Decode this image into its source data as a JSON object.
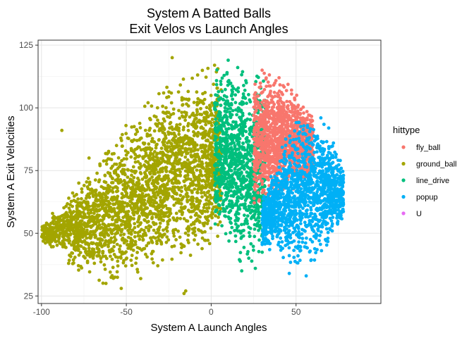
{
  "chart_data": {
    "type": "scatter",
    "title": "System A Batted Balls",
    "subtitle": "Exit Velos vs Launch Angles",
    "xlabel": "System A Launch Angles",
    "ylabel": "System A Exit Velocities",
    "xlim": [
      -102,
      100
    ],
    "ylim": [
      22,
      127
    ],
    "x_ticks": [
      -100,
      -50,
      0,
      50
    ],
    "y_ticks": [
      25,
      50,
      75,
      100,
      125
    ],
    "grid": true,
    "legend": {
      "title": "hittype",
      "placement": "right",
      "entries": [
        {
          "name": "fly_ball",
          "color": "#F8766D"
        },
        {
          "name": "ground_ball",
          "color": "#A3A500"
        },
        {
          "name": "line_drive",
          "color": "#00BF7D"
        },
        {
          "name": "popup",
          "color": "#00B0F6"
        },
        {
          "name": "U",
          "color": "#E76BF3"
        }
      ]
    },
    "series": [
      {
        "name": "ground_ball",
        "color": "#A3A500",
        "region": {
          "x": [
            -100,
            6
          ],
          "y_upper_by_x": [
            [
              -100,
              54
            ],
            [
              -90,
              60
            ],
            [
              -80,
              68
            ],
            [
              -70,
              75
            ],
            [
              -60,
              85
            ],
            [
              -50,
              93
            ],
            [
              -40,
              100
            ],
            [
              -30,
              107
            ],
            [
              -20,
              111
            ],
            [
              -10,
              114
            ],
            [
              0,
              115
            ],
            [
              6,
              115
            ]
          ],
          "y_lower_by_x": [
            [
              -100,
              46
            ],
            [
              -90,
              42
            ],
            [
              -80,
              36
            ],
            [
              -70,
              32
            ],
            [
              -60,
              29
            ],
            [
              -50,
              29
            ],
            [
              -40,
              33
            ],
            [
              -30,
              36
            ],
            [
              -20,
              40
            ],
            [
              -10,
              42
            ],
            [
              0,
              44
            ],
            [
              6,
              45
            ]
          ]
        },
        "points": [
          {
            "x": -88,
            "y": 91
          },
          {
            "x": -95,
            "y": 46
          },
          {
            "x": -53,
            "y": 28
          },
          {
            "x": -15,
            "y": 27
          },
          {
            "x": -16,
            "y": 26
          },
          {
            "x": -23,
            "y": 120
          },
          {
            "x": 2,
            "y": 117
          },
          {
            "x": -84,
            "y": 38
          },
          {
            "x": -62,
            "y": 30
          },
          {
            "x": -72,
            "y": 80
          },
          {
            "x": -78,
            "y": 70
          },
          {
            "x": -90,
            "y": 55
          }
        ]
      },
      {
        "name": "line_drive",
        "color": "#00BF7D",
        "region": {
          "x": [
            2,
            32
          ],
          "y_upper_by_x": [
            [
              2,
              116
            ],
            [
              10,
              118
            ],
            [
              20,
              116
            ],
            [
              26,
              113
            ],
            [
              32,
              110
            ]
          ],
          "y_lower_by_x": [
            [
              2,
              50
            ],
            [
              10,
              44
            ],
            [
              20,
              38
            ],
            [
              26,
              37
            ],
            [
              32,
              40
            ]
          ]
        },
        "points": [
          {
            "x": 18,
            "y": 35
          },
          {
            "x": 26,
            "y": 36
          },
          {
            "x": 10,
            "y": 119
          }
        ]
      },
      {
        "name": "fly_ball",
        "color": "#F8766D",
        "region": {
          "x": [
            25,
            60
          ],
          "y_upper_by_x": [
            [
              25,
              114
            ],
            [
              35,
              113
            ],
            [
              45,
              109
            ],
            [
              55,
              103
            ],
            [
              60,
              98
            ]
          ],
          "y_lower_by_x": [
            [
              25,
              60
            ],
            [
              35,
              62
            ],
            [
              45,
              66
            ],
            [
              55,
              70
            ],
            [
              60,
              74
            ]
          ]
        },
        "points": [
          {
            "x": 30,
            "y": 115
          },
          {
            "x": 40,
            "y": 112
          }
        ]
      },
      {
        "name": "popup",
        "color": "#00B0F6",
        "region": {
          "x": [
            30,
            78
          ],
          "y_upper_by_x": [
            [
              30,
              64
            ],
            [
              45,
              90
            ],
            [
              55,
              100
            ],
            [
              65,
              96
            ],
            [
              72,
              88
            ],
            [
              78,
              76
            ]
          ],
          "y_lower_by_x": [
            [
              30,
              44
            ],
            [
              45,
              40
            ],
            [
              55,
              36
            ],
            [
              65,
              42
            ],
            [
              72,
              48
            ],
            [
              78,
              54
            ]
          ]
        },
        "points": [
          {
            "x": 46,
            "y": 34
          },
          {
            "x": 56,
            "y": 33
          }
        ]
      },
      {
        "name": "U",
        "color": "#E76BF3",
        "points": []
      }
    ]
  }
}
